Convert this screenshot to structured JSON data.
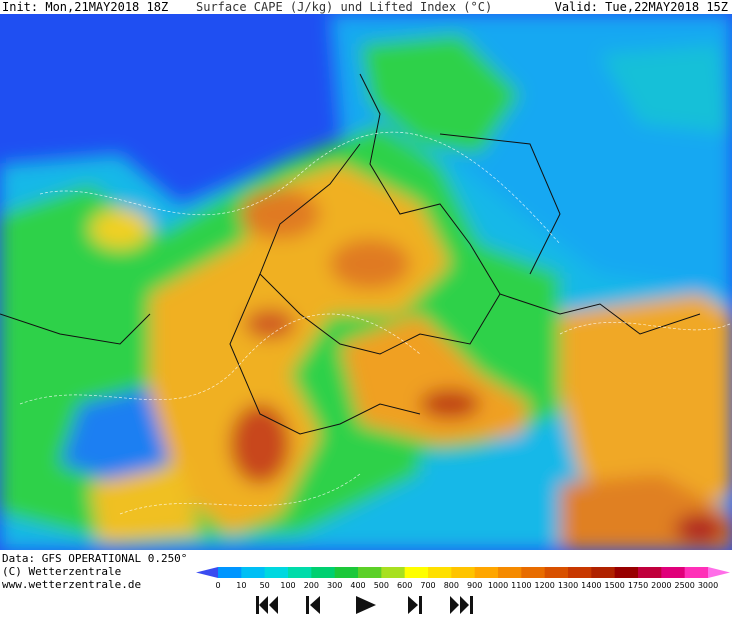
{
  "header": {
    "init": "Init: Mon,21MAY2018 18Z",
    "title": "Surface CAPE (J/kg) und Lifted Index (°C)",
    "valid": "Valid: Tue,22MAY2018 15Z"
  },
  "footer": {
    "lines": [
      "Data: GFS OPERATIONAL 0.250°",
      "(C) Wetterzentrale",
      "www.wetterzentrale.de"
    ]
  },
  "colorbar": {
    "labels": [
      0,
      10,
      50,
      100,
      200,
      300,
      400,
      500,
      600,
      700,
      800,
      900,
      1000,
      1100,
      1200,
      1300,
      1400,
      1500,
      1750,
      2000,
      2500,
      3000
    ],
    "colors": [
      "#3a4cf0",
      "#0096ff",
      "#00bff5",
      "#00d8e0",
      "#00dcaa",
      "#00d070",
      "#1cc83a",
      "#5cd028",
      "#a8e020",
      "#ffff00",
      "#ffe000",
      "#ffc400",
      "#ffa600",
      "#f58a00",
      "#e86c00",
      "#d85000",
      "#c83800",
      "#b02200",
      "#980000",
      "#c0003c",
      "#e0007a",
      "#ff30b8",
      "#ff6ee8"
    ]
  }
}
